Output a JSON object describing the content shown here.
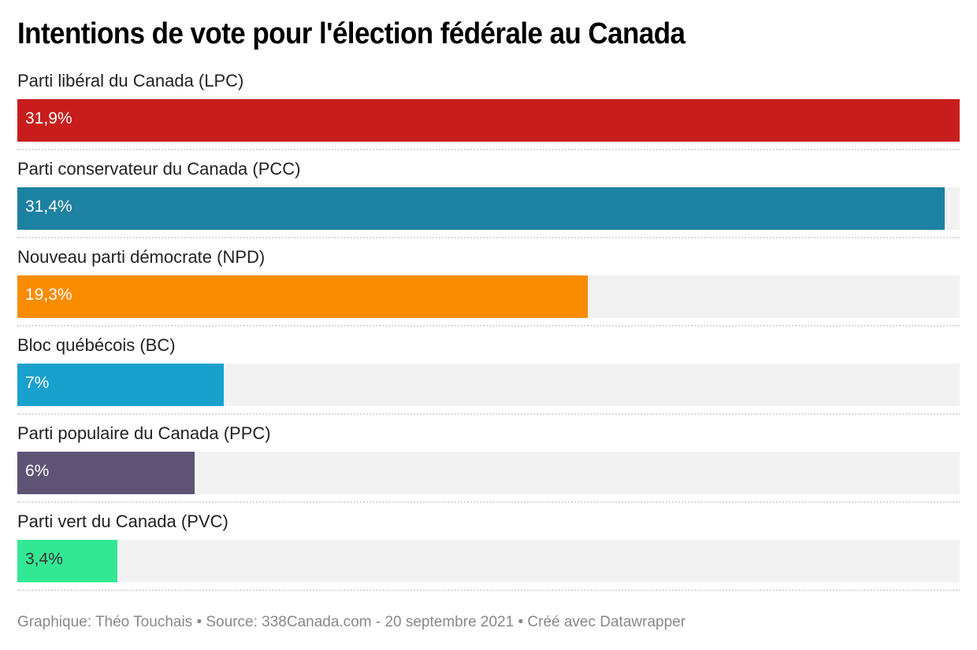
{
  "chart_data": {
    "type": "bar",
    "orientation": "horizontal",
    "title": "Intentions de vote pour l'élection fédérale au Canada",
    "categories": [
      "Parti libéral du Canada (LPC)",
      "Parti conservateur du Canada (PCC)",
      "Nouveau parti démocrate (NPD)",
      "Bloc québécois (BC)",
      "Parti populaire du Canada (PPC)",
      "Parti vert du Canada (PVC)"
    ],
    "values": [
      31.9,
      31.4,
      19.3,
      7,
      6,
      3.4
    ],
    "value_labels": [
      "31,9%",
      "31,4%",
      "19,3%",
      "7%",
      "6%",
      "3,4%"
    ],
    "colors": [
      "#c71e1d",
      "#1d81a2",
      "#fa8c00",
      "#18a1cd",
      "#5e5375",
      "#33e894"
    ],
    "label_colors": [
      "#ffffff",
      "#ffffff",
      "#ffffff",
      "#ffffff",
      "#ffffff",
      "#333333"
    ],
    "xlabel": "",
    "ylabel": "",
    "xlim": [
      0,
      31.9
    ],
    "grid": false,
    "legend": "none",
    "unit": "%"
  },
  "footer": "Graphique: Théo Touchais • Source: 338Canada.com - 20 septembre 2021 • Créé avec Datawrapper"
}
